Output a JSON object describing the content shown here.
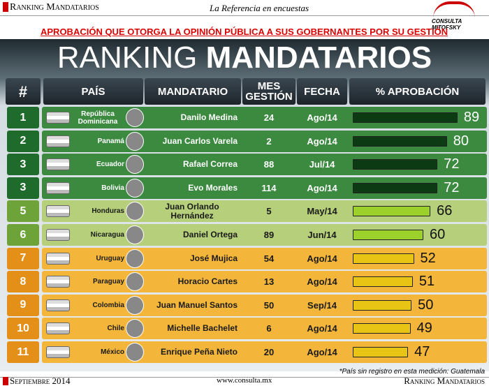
{
  "header": {
    "top_left": "Ranking Mandatarios",
    "tagline": "La Referencia en encuestas",
    "logo": "CONSULTA MITOFSKY",
    "subtitle": "APROBACIÓN QUE OTORGA LA OPINIÓN PÚBLICA A SUS GOBERNANTES POR SU GESTIÓN",
    "title_light": "RANKING",
    "title_bold": "MANDATARIOS"
  },
  "table": {
    "columns": [
      "#",
      "PAÍS",
      "MANDATARIO",
      "MES GESTIÓN",
      "FECHA",
      "% APROBACIÓN"
    ],
    "groups": [
      {
        "row_color": "#3b8a40",
        "rank_color": "#1f6b2b",
        "text_color": "#ffffff",
        "bar_color": "#0c3a12",
        "rows": [
          {
            "rank": 1,
            "country": "República Dominicana",
            "leader": "Danilo Medina",
            "months": 24,
            "date": "Ago/14",
            "approval": 89
          },
          {
            "rank": 2,
            "country": "Panamá",
            "leader": "Juan Carlos Varela",
            "months": 2,
            "date": "Ago/14",
            "approval": 80
          },
          {
            "rank": 3,
            "country": "Ecuador",
            "leader": "Rafael Correa",
            "months": 88,
            "date": "Jul/14",
            "approval": 72
          },
          {
            "rank": 3,
            "country": "Bolivia",
            "leader": "Evo Morales",
            "months": 114,
            "date": "Ago/14",
            "approval": 72
          }
        ]
      },
      {
        "row_color": "#b5cf7a",
        "rank_color": "#6ea33a",
        "text_color": "#1a1a1a",
        "bar_color": "#9bd12a",
        "rows": [
          {
            "rank": 5,
            "country": "Honduras",
            "leader": "Juan Orlando Hernández",
            "months": 5,
            "date": "May/14",
            "approval": 66
          },
          {
            "rank": 6,
            "country": "Nicaragua",
            "leader": "Daniel Ortega",
            "months": 89,
            "date": "Jun/14",
            "approval": 60
          }
        ]
      },
      {
        "row_color": "#f3b53a",
        "rank_color": "#e48f18",
        "text_color": "#1a1a1a",
        "bar_color": "#e8c414",
        "rows": [
          {
            "rank": 7,
            "country": "Uruguay",
            "leader": "José Mujica",
            "months": 54,
            "date": "Ago/14",
            "approval": 52
          },
          {
            "rank": 8,
            "country": "Paraguay",
            "leader": "Horacio Cartes",
            "months": 13,
            "date": "Ago/14",
            "approval": 51
          },
          {
            "rank": 9,
            "country": "Colombia",
            "leader": "Juan Manuel Santos",
            "months": 50,
            "date": "Sep/14",
            "approval": 50
          },
          {
            "rank": 10,
            "country": "Chile",
            "leader": "Michelle Bachelet",
            "months": 6,
            "date": "Ago/14",
            "approval": 49
          },
          {
            "rank": 11,
            "country": "México",
            "leader": "Enrique Peña Nieto",
            "months": 20,
            "date": "Ago/14",
            "approval": 47
          }
        ]
      }
    ]
  },
  "footer": {
    "note": "*País sin registro en esta medición: Guatemala",
    "date": "Septiembre 2014",
    "url": "www.consulta.mx",
    "brand": "Ranking Mandatarios"
  }
}
